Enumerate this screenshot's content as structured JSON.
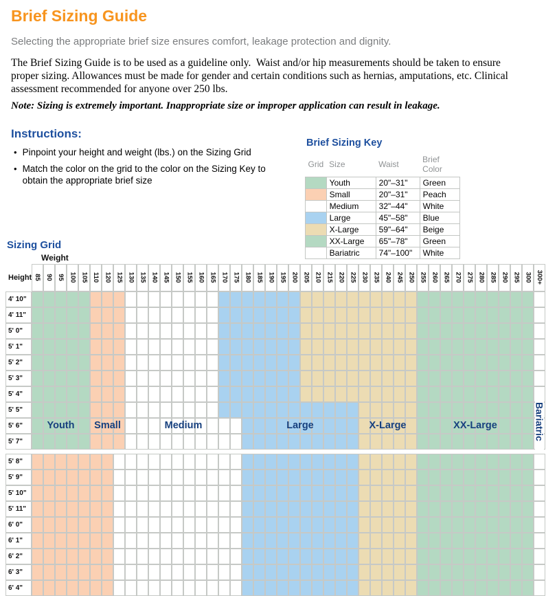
{
  "page": {
    "title": "Brief Sizing Guide",
    "subtitle": "Selecting the appropriate brief size ensures comfort, leakage protection and dignity.",
    "body_paragraph": "The Brief Sizing Guide is to be used as a guideline only.  Waist and/or hip measurements should be taken to ensure proper sizing. Allowances must be made for gender and certain conditions such as hernias, amputations, etc. Clinical assessment recommended for anyone over 250 lbs.",
    "note": "Note: Sizing is extremely important. Inappropriate size or improper application can result in leakage."
  },
  "instructions": {
    "heading": "Instructions:",
    "bullets": [
      "Pinpoint your height and weight (lbs.) on the Sizing Grid",
      "Match the color on the grid to the color on the Sizing Key to obtain the appropriate brief size"
    ]
  },
  "colors": {
    "green": "#b4d9c2",
    "peach": "#fbd0b3",
    "blue": "#a9d2f0",
    "beige": "#ecdcb3",
    "white": "#ffffff",
    "accent_orange": "#f7941e",
    "accent_blue": "#1d4f9e",
    "label_navy": "#17407e"
  },
  "sizing_key": {
    "title": "Brief Sizing Key",
    "headers": [
      "Grid",
      "Size",
      "Waist",
      "Brief Color"
    ],
    "rows": [
      {
        "grid_color": "green",
        "size": "Youth",
        "waist": "20\"–31\"",
        "brief_color": "Green"
      },
      {
        "grid_color": "peach",
        "size": "Small",
        "waist": "20\"–31\"",
        "brief_color": "Peach"
      },
      {
        "grid_color": "white",
        "size": "Medium",
        "waist": "32\"–44\"",
        "brief_color": "White"
      },
      {
        "grid_color": "blue",
        "size": "Large",
        "waist": "45\"–58\"",
        "brief_color": "Blue"
      },
      {
        "grid_color": "beige",
        "size": "X-Large",
        "waist": "59\"–64\"",
        "brief_color": "Beige"
      },
      {
        "grid_color": "green",
        "size": "XX-Large",
        "waist": "65\"–78\"",
        "brief_color": "Green"
      },
      {
        "grid_color": "white",
        "size": "Bariatric",
        "waist": "74\"–100\"",
        "brief_color": "White"
      }
    ]
  },
  "sizing_grid": {
    "title": "Sizing Grid",
    "weight_label": "Weight",
    "height_label": "Height",
    "weights": [
      "85",
      "90",
      "95",
      "100",
      "105",
      "110",
      "120",
      "125",
      "130",
      "135",
      "140",
      "145",
      "150",
      "155",
      "160",
      "165",
      "170",
      "175",
      "180",
      "185",
      "190",
      "195",
      "200",
      "205",
      "210",
      "215",
      "220",
      "225",
      "230",
      "235",
      "240",
      "245",
      "250",
      "255",
      "260",
      "265",
      "270",
      "275",
      "280",
      "285",
      "290",
      "295",
      "300",
      "300+"
    ],
    "upper_heights": [
      "4' 10\"",
      "4' 11\"",
      "5' 0\"",
      "5' 1\"",
      "5' 2\"",
      "5' 3\"",
      "5' 4\"",
      "5' 5\"",
      "5' 6\"",
      "5' 7\""
    ],
    "lower_heights": [
      "5' 8\"",
      "5' 9\"",
      "5' 10\"",
      "5' 11\"",
      "6' 0\"",
      "6' 1\"",
      "6' 2\"",
      "6' 3\"",
      "6' 4\""
    ],
    "bands": [
      {
        "rows": [
          0,
          6
        ],
        "spans": [
          [
            "green",
            0,
            4
          ],
          [
            "peach",
            5,
            7
          ],
          [
            "white",
            8,
            15
          ],
          [
            "blue",
            16,
            22
          ],
          [
            "beige",
            23,
            32
          ],
          [
            "green",
            33,
            42
          ],
          [
            "white",
            43,
            43
          ]
        ]
      },
      {
        "rows": [
          7,
          7
        ],
        "spans": [
          [
            "green",
            0,
            4
          ],
          [
            "peach",
            5,
            7
          ],
          [
            "white",
            8,
            15
          ],
          [
            "blue",
            16,
            27
          ],
          [
            "beige",
            28,
            32
          ],
          [
            "green",
            33,
            42
          ],
          [
            "white",
            43,
            43
          ]
        ]
      },
      {
        "rows": [
          8,
          9
        ],
        "spans": [
          [
            "green",
            0,
            4
          ],
          [
            "peach",
            5,
            7
          ],
          [
            "white",
            8,
            17
          ],
          [
            "blue",
            18,
            27
          ],
          [
            "beige",
            28,
            32
          ],
          [
            "green",
            33,
            42
          ],
          [
            "white",
            43,
            43
          ]
        ]
      },
      {
        "rows": [
          10,
          18
        ],
        "spans": [
          [
            "peach",
            0,
            6
          ],
          [
            "white",
            7,
            17
          ],
          [
            "blue",
            18,
            27
          ],
          [
            "beige",
            28,
            32
          ],
          [
            "green",
            33,
            42
          ],
          [
            "white",
            43,
            43
          ]
        ]
      }
    ],
    "region_labels": [
      {
        "text": "Youth",
        "row": 8,
        "from": 0,
        "to": 4
      },
      {
        "text": "Small",
        "row": 8,
        "from": 5,
        "to": 7
      },
      {
        "text": "Medium",
        "row": 8,
        "from": 8,
        "to": 17
      },
      {
        "text": "Large",
        "row": 8,
        "from": 18,
        "to": 27
      },
      {
        "text": "X-Large",
        "row": 8,
        "from": 28,
        "to": 32
      },
      {
        "text": "XX-Large",
        "row": 8,
        "from": 33,
        "to": 42
      },
      {
        "text": "Bariatric",
        "vertical": true,
        "col": 43
      }
    ]
  }
}
